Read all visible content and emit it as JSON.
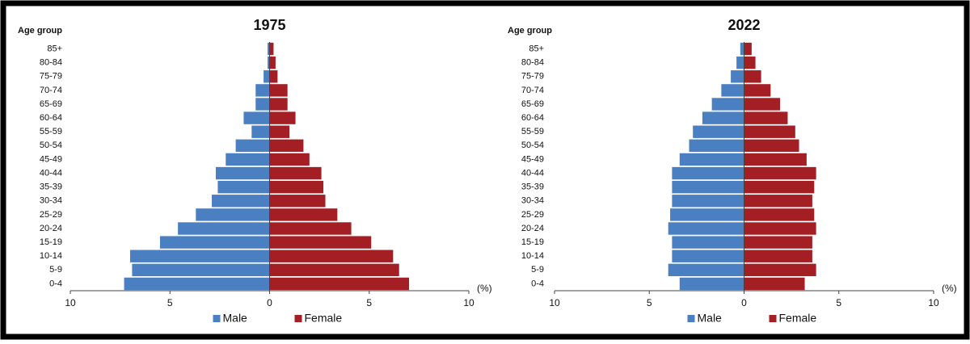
{
  "chart_data": [
    {
      "type": "bar",
      "orientation": "horizontal",
      "title": "1975",
      "ylabel": "Age group",
      "xunit": "(%)",
      "categories": [
        "0-4",
        "5-9",
        "10-14",
        "15-19",
        "20-24",
        "25-29",
        "30-34",
        "35-39",
        "40-44",
        "45-49",
        "50-54",
        "55-59",
        "60-64",
        "65-69",
        "70-74",
        "75-79",
        "80-84",
        "85+"
      ],
      "series": [
        {
          "name": "Male",
          "color": "#4a7fc1",
          "values": [
            -7.3,
            -6.9,
            -7.0,
            -5.5,
            -4.6,
            -3.7,
            -2.9,
            -2.6,
            -2.7,
            -2.2,
            -1.7,
            -0.9,
            -1.3,
            -0.7,
            -0.7,
            -0.3,
            -0.1,
            -0.1
          ]
        },
        {
          "name": "Female",
          "color": "#a31f24",
          "values": [
            7.0,
            6.5,
            6.2,
            5.1,
            4.1,
            3.4,
            2.8,
            2.7,
            2.6,
            2.0,
            1.7,
            1.0,
            1.3,
            0.9,
            0.9,
            0.4,
            0.3,
            0.2
          ]
        }
      ],
      "xlim": [
        -10,
        10
      ],
      "xticks": [
        {
          "value": -10,
          "label": "10"
        },
        {
          "value": -5,
          "label": "5"
        },
        0,
        5,
        10
      ],
      "legend": "bottom"
    },
    {
      "type": "bar",
      "orientation": "horizontal",
      "title": "2022",
      "ylabel": "Age group",
      "xunit": "(%)",
      "categories": [
        "0-4",
        "5-9",
        "10-14",
        "15-19",
        "20-24",
        "25-29",
        "30-34",
        "35-39",
        "40-44",
        "45-49",
        "50-54",
        "55-59",
        "60-64",
        "65-69",
        "70-74",
        "75-79",
        "80-84",
        "85+"
      ],
      "series": [
        {
          "name": "Male",
          "color": "#4a7fc1",
          "values": [
            -3.4,
            -4.0,
            -3.8,
            -3.8,
            -4.0,
            -3.9,
            -3.8,
            -3.8,
            -3.8,
            -3.4,
            -2.9,
            -2.7,
            -2.2,
            -1.7,
            -1.2,
            -0.7,
            -0.4,
            -0.2
          ]
        },
        {
          "name": "Female",
          "color": "#a31f24",
          "values": [
            3.2,
            3.8,
            3.6,
            3.6,
            3.8,
            3.7,
            3.6,
            3.7,
            3.8,
            3.3,
            2.9,
            2.7,
            2.3,
            1.9,
            1.4,
            0.9,
            0.6,
            0.4
          ]
        }
      ],
      "xlim": [
        -10,
        10
      ],
      "xticks": [
        {
          "value": -10,
          "label": "10"
        },
        {
          "value": -5,
          "label": "5"
        },
        0,
        5,
        10
      ],
      "legend": "bottom"
    }
  ]
}
